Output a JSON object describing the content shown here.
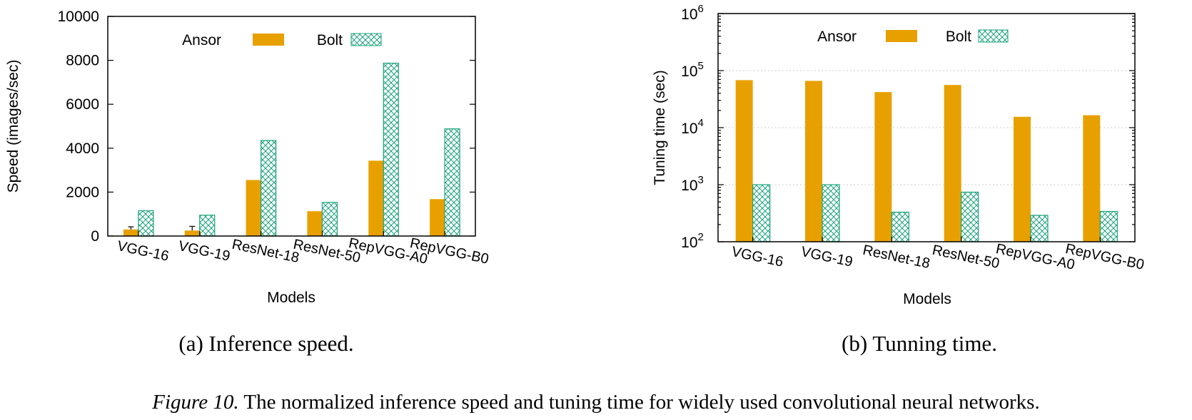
{
  "colors": {
    "ansor": "#e8a000",
    "bolt": "#1aa37a"
  },
  "legend": {
    "ansor": "Ansor",
    "bolt": "Bolt"
  },
  "chart_data": [
    {
      "type": "bar",
      "categories": [
        "VGG-16",
        "VGG-19",
        "ResNet-18",
        "ResNet-50",
        "RepVGG-A0",
        "RepVGG-B0"
      ],
      "series": [
        {
          "name": "Ansor",
          "values": [
            300,
            250,
            2550,
            1130,
            3430,
            1680
          ]
        },
        {
          "name": "Bolt",
          "values": [
            1150,
            950,
            4350,
            1530,
            7870,
            4880
          ]
        }
      ],
      "error_tops": {
        "Ansor": [
          420,
          440,
          null,
          null,
          null,
          null
        ]
      },
      "xlabel": "Models",
      "ylabel": "Speed (images/sec)",
      "ylim": [
        0,
        10000
      ],
      "yticks": [
        "0",
        "2000",
        "4000",
        "6000",
        "8000",
        "10000"
      ],
      "scale": "linear",
      "legend_position": "top",
      "caption": "(a) Inference speed."
    },
    {
      "type": "bar",
      "categories": [
        "VGG-16",
        "VGG-19",
        "ResNet-18",
        "ResNet-50",
        "RepVGG-A0",
        "RepVGG-B0"
      ],
      "series": [
        {
          "name": "Ansor",
          "values": [
            68000,
            66000,
            42000,
            56000,
            15500,
            16500
          ]
        },
        {
          "name": "Bolt",
          "values": [
            1000,
            1000,
            330,
            740,
            290,
            340
          ]
        }
      ],
      "xlabel": "Models",
      "ylabel": "Tuning time (sec)",
      "ylim": [
        100,
        1000000
      ],
      "ytick_base": "10",
      "ytick_exponents": [
        "2",
        "3",
        "4",
        "5",
        "6"
      ],
      "scale": "log",
      "grid": true,
      "legend_position": "top",
      "caption": "(b) Tunning time."
    }
  ],
  "figure_caption": {
    "label": "Figure 10.",
    "text": " The normalized inference speed and tuning time for widely used convolutional neural networks."
  }
}
